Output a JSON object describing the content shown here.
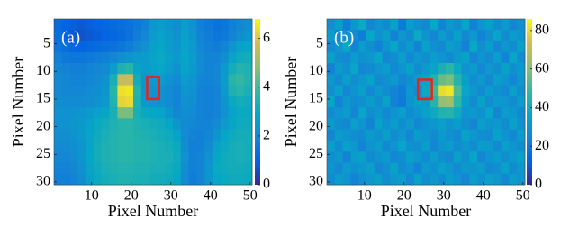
{
  "chart_data": [
    {
      "type": "heatmap",
      "label": "(a)",
      "xlabel": "Pixel Number",
      "ylabel": "Pixel Number",
      "colormap": "parula",
      "y_inverted": true,
      "x": [
        1.5,
        3.5,
        5.5,
        7.5,
        9.5,
        11.5,
        13.5,
        15.5,
        17.5,
        19.5,
        21.5,
        23.5,
        25.5,
        27.5,
        29.5,
        31.5,
        33.5,
        35.5,
        37.5,
        39.5,
        41.5,
        43.5,
        45.5,
        47.5,
        49.5
      ],
      "y": [
        1.5,
        3.5,
        5.5,
        7.5,
        9.5,
        11.5,
        13.5,
        15.5,
        17.5,
        19.5,
        21.5,
        23.5,
        25.5,
        27.5,
        29.5
      ],
      "z": [
        [
          1.2,
          1.0,
          0.9,
          0.8,
          0.9,
          1.0,
          1.1,
          1.2,
          1.3,
          1.4,
          1.6,
          1.8,
          2.4,
          2.6,
          2.4,
          2.2,
          2.6,
          2.3,
          1.8,
          1.6,
          1.4,
          1.5,
          1.8,
          2.0,
          2.2
        ],
        [
          1.3,
          1.0,
          0.8,
          0.7,
          0.8,
          0.9,
          1.0,
          1.1,
          1.2,
          1.4,
          1.7,
          2.0,
          2.6,
          2.8,
          2.5,
          2.3,
          2.7,
          2.4,
          1.9,
          1.7,
          1.5,
          1.6,
          1.9,
          2.2,
          2.4
        ],
        [
          1.5,
          1.3,
          1.1,
          1.0,
          1.1,
          1.2,
          1.3,
          1.4,
          1.5,
          1.7,
          2.0,
          2.3,
          2.7,
          2.9,
          2.6,
          2.4,
          2.8,
          2.5,
          2.0,
          1.8,
          1.7,
          1.9,
          2.4,
          2.7,
          2.9
        ],
        [
          1.8,
          1.6,
          1.5,
          1.5,
          1.6,
          1.7,
          1.8,
          2.0,
          2.2,
          2.4,
          2.5,
          2.6,
          2.8,
          3.0,
          2.7,
          2.5,
          2.9,
          2.6,
          2.1,
          1.9,
          1.9,
          2.2,
          2.8,
          3.1,
          3.2
        ],
        [
          2.0,
          1.9,
          1.8,
          1.8,
          1.9,
          2.0,
          2.1,
          2.6,
          3.4,
          3.6,
          2.8,
          2.6,
          2.7,
          2.9,
          2.6,
          2.3,
          2.8,
          2.5,
          2.1,
          1.9,
          2.0,
          2.5,
          3.2,
          3.5,
          3.4
        ],
        [
          2.1,
          2.0,
          1.9,
          1.9,
          2.0,
          2.1,
          2.3,
          3.3,
          5.5,
          5.6,
          3.2,
          2.4,
          2.5,
          2.6,
          2.3,
          2.1,
          2.6,
          2.4,
          2.0,
          1.9,
          2.0,
          2.6,
          3.6,
          3.8,
          3.5
        ],
        [
          2.1,
          2.0,
          2.0,
          2.0,
          2.1,
          2.2,
          2.4,
          3.6,
          6.4,
          6.5,
          3.5,
          2.4,
          2.3,
          2.3,
          2.1,
          1.9,
          2.4,
          2.3,
          1.9,
          1.8,
          1.9,
          2.5,
          3.4,
          3.6,
          3.3
        ],
        [
          2.2,
          2.1,
          2.1,
          2.1,
          2.2,
          2.3,
          2.5,
          3.5,
          6.2,
          6.3,
          3.4,
          2.5,
          2.4,
          2.3,
          2.1,
          1.9,
          2.3,
          2.2,
          1.9,
          1.8,
          1.9,
          2.4,
          3.0,
          3.2,
          3.1
        ],
        [
          2.3,
          2.3,
          2.3,
          2.4,
          2.5,
          2.7,
          2.9,
          3.3,
          4.6,
          4.6,
          3.3,
          3.0,
          2.9,
          2.8,
          2.4,
          2.0,
          2.2,
          2.1,
          1.9,
          1.8,
          1.9,
          2.3,
          2.8,
          3.0,
          3.0
        ],
        [
          2.3,
          2.3,
          2.4,
          2.5,
          2.7,
          3.0,
          3.2,
          3.4,
          3.6,
          3.6,
          3.4,
          3.3,
          3.2,
          3.1,
          2.9,
          2.4,
          2.1,
          2.0,
          1.9,
          1.9,
          2.1,
          2.6,
          2.9,
          3.1,
          3.1
        ],
        [
          2.2,
          2.2,
          2.3,
          2.5,
          2.8,
          3.1,
          3.3,
          3.5,
          3.6,
          3.6,
          3.5,
          3.4,
          3.3,
          3.2,
          3.1,
          2.8,
          2.1,
          1.9,
          1.8,
          2.0,
          2.4,
          2.9,
          3.1,
          3.2,
          3.2
        ],
        [
          2.1,
          2.1,
          2.2,
          2.4,
          2.8,
          3.2,
          3.4,
          3.5,
          3.6,
          3.6,
          3.5,
          3.5,
          3.4,
          3.3,
          3.2,
          3.0,
          2.2,
          1.8,
          1.8,
          2.1,
          2.7,
          3.0,
          3.2,
          3.3,
          3.2
        ],
        [
          2.0,
          2.0,
          2.1,
          2.4,
          2.9,
          3.2,
          3.4,
          3.5,
          3.6,
          3.6,
          3.5,
          3.5,
          3.4,
          3.3,
          3.3,
          3.1,
          2.3,
          1.8,
          1.9,
          2.3,
          2.9,
          3.1,
          3.2,
          3.3,
          3.2
        ],
        [
          1.9,
          1.9,
          2.0,
          2.3,
          2.8,
          3.1,
          3.3,
          3.4,
          3.5,
          3.5,
          3.4,
          3.4,
          3.3,
          3.3,
          3.2,
          3.0,
          2.2,
          1.8,
          1.9,
          2.4,
          3.0,
          3.1,
          3.2,
          3.2,
          3.1
        ],
        [
          1.8,
          1.8,
          1.9,
          2.2,
          2.7,
          3.0,
          3.2,
          3.3,
          3.4,
          3.4,
          3.3,
          3.3,
          3.2,
          3.2,
          3.1,
          2.9,
          2.1,
          1.7,
          1.9,
          2.4,
          2.9,
          3.0,
          3.1,
          3.1,
          3.0
        ]
      ],
      "xlim": [
        0.5,
        50.5
      ],
      "ylim": [
        0.5,
        30.5
      ],
      "xticks": [
        10,
        20,
        30,
        40,
        50
      ],
      "yticks": [
        5,
        10,
        15,
        20,
        25,
        30
      ],
      "clim": [
        0,
        6.8
      ],
      "cticks": [
        0,
        2,
        4,
        6
      ],
      "box": {
        "x": [
          24,
          27
        ],
        "y": [
          11,
          15
        ],
        "color": "#e8231c"
      }
    },
    {
      "type": "heatmap",
      "label": "(b)",
      "xlabel": "Pixel Number",
      "ylabel": "Pixel Number",
      "colormap": "parula",
      "y_inverted": true,
      "x": [
        1.5,
        3.5,
        5.5,
        7.5,
        9.5,
        11.5,
        13.5,
        15.5,
        17.5,
        19.5,
        21.5,
        23.5,
        25.5,
        27.5,
        29.5,
        31.5,
        33.5,
        35.5,
        37.5,
        39.5,
        41.5,
        43.5,
        45.5,
        47.5,
        49.5
      ],
      "y": [
        1.5,
        3.5,
        5.5,
        7.5,
        9.5,
        11.5,
        13.5,
        15.5,
        17.5,
        19.5,
        21.5,
        23.5,
        25.5,
        27.5,
        29.5
      ],
      "z": [
        [
          28,
          34,
          22,
          31,
          38,
          25,
          30,
          27,
          35,
          21,
          33,
          29,
          26,
          37,
          24,
          31,
          28,
          36,
          23,
          30,
          34,
          27,
          32,
          25,
          29
        ],
        [
          33,
          25,
          30,
          27,
          22,
          36,
          29,
          34,
          24,
          31,
          27,
          38,
          30,
          25,
          33,
          28,
          35,
          26,
          31,
          24,
          29,
          36,
          27,
          33,
          30
        ],
        [
          26,
          31,
          37,
          24,
          33,
          28,
          23,
          30,
          36,
          27,
          32,
          24,
          35,
          29,
          26,
          34,
          30,
          23,
          37,
          28,
          33,
          25,
          31,
          27,
          35
        ],
        [
          35,
          28,
          26,
          33,
          29,
          31,
          36,
          25,
          28,
          34,
          26,
          31,
          28,
          33,
          30,
          27,
          32,
          35,
          25,
          30,
          27,
          33,
          24,
          36,
          28
        ],
        [
          24,
          32,
          29,
          36,
          25,
          27,
          30,
          33,
          26,
          30,
          35,
          28,
          32,
          36,
          42,
          46,
          38,
          30,
          33,
          26,
          31,
          28,
          35,
          29,
          32
        ],
        [
          31,
          27,
          34,
          28,
          31,
          35,
          26,
          29,
          32,
          25,
          29,
          33,
          36,
          44,
          56,
          58,
          45,
          34,
          28,
          32,
          26,
          34,
          30,
          25,
          31
        ],
        [
          29,
          35,
          25,
          30,
          34,
          26,
          32,
          28,
          24,
          22,
          31,
          27,
          38,
          50,
          80,
          82,
          52,
          36,
          31,
          27,
          33,
          29,
          26,
          34,
          28
        ],
        [
          36,
          24,
          31,
          27,
          29,
          33,
          28,
          35,
          23,
          21,
          30,
          34,
          33,
          45,
          62,
          64,
          47,
          33,
          27,
          35,
          28,
          32,
          30,
          27,
          33
        ],
        [
          27,
          30,
          33,
          25,
          36,
          28,
          31,
          26,
          30,
          34,
          27,
          30,
          35,
          38,
          44,
          45,
          39,
          30,
          32,
          29,
          36,
          25,
          33,
          31,
          26
        ],
        [
          32,
          28,
          26,
          34,
          30,
          24,
          35,
          29,
          33,
          28,
          32,
          26,
          29,
          31,
          34,
          30,
          33,
          28,
          25,
          34,
          30,
          32,
          27,
          35,
          29
        ],
        [
          25,
          33,
          30,
          28,
          27,
          32,
          29,
          34,
          27,
          31,
          25,
          33,
          30,
          27,
          32,
          29,
          26,
          35,
          31,
          28,
          27,
          35,
          30,
          26,
          33
        ],
        [
          34,
          27,
          35,
          31,
          24,
          30,
          33,
          26,
          30,
          36,
          29,
          28,
          34,
          25,
          30,
          33,
          28,
          31,
          27,
          33,
          32,
          26,
          34,
          30,
          28
        ],
        [
          28,
          31,
          24,
          33,
          35,
          27,
          30,
          32,
          25,
          28,
          34,
          31,
          27,
          33,
          28,
          26,
          34,
          29,
          36,
          25,
          30,
          33,
          28,
          32,
          35
        ],
        [
          30,
          26,
          32,
          29,
          31,
          34,
          25,
          29,
          35,
          27,
          30,
          24,
          32,
          29,
          35,
          31,
          27,
          32,
          30,
          33,
          26,
          29,
          35,
          27,
          31
        ],
        [
          27,
          33,
          30,
          24,
          28,
          31,
          34,
          27,
          31,
          33,
          26,
          35,
          28,
          31,
          27,
          33,
          30,
          25,
          33,
          29,
          34,
          31,
          26,
          33,
          30
        ]
      ],
      "xlim": [
        0.5,
        50.5
      ],
      "ylim": [
        0.5,
        30.5
      ],
      "xticks": [
        10,
        20,
        30,
        40,
        50
      ],
      "yticks": [
        5,
        10,
        15,
        20,
        25,
        30
      ],
      "clim": [
        0,
        86
      ],
      "cticks": [
        0,
        20,
        40,
        60,
        80
      ],
      "box": {
        "x": [
          23.5,
          27
        ],
        "y": [
          11.5,
          15
        ],
        "color": "#e8231c"
      }
    }
  ]
}
